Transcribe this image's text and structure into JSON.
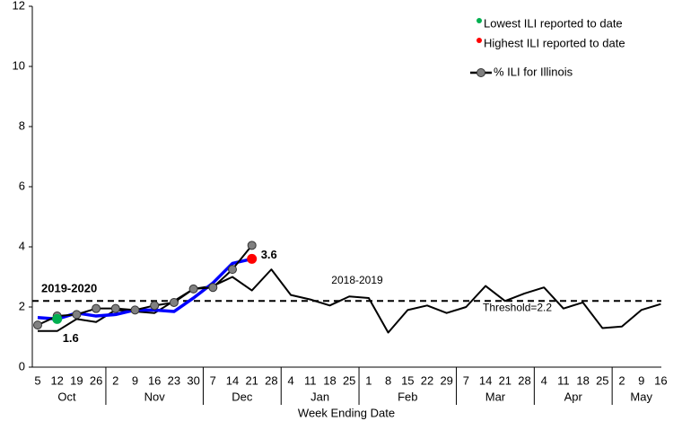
{
  "chart_data": {
    "type": "line",
    "x_label": "Week Ending Date",
    "months": [
      {
        "name": "Oct",
        "days": [
          "5",
          "12",
          "19",
          "26"
        ]
      },
      {
        "name": "Nov",
        "days": [
          "2",
          "9",
          "16",
          "23",
          "30"
        ]
      },
      {
        "name": "Dec",
        "days": [
          "7",
          "14",
          "21",
          "28"
        ]
      },
      {
        "name": "Jan",
        "days": [
          "4",
          "11",
          "18",
          "25"
        ]
      },
      {
        "name": "Feb",
        "days": [
          "1",
          "8",
          "15",
          "22",
          "29"
        ]
      },
      {
        "name": "Mar",
        "days": [
          "7",
          "14",
          "21",
          "28"
        ]
      },
      {
        "name": "Apr",
        "days": [
          "4",
          "11",
          "18",
          "25"
        ]
      },
      {
        "name": "May",
        "days": [
          "2",
          "9",
          "16"
        ]
      }
    ],
    "ylim": [
      0,
      12
    ],
    "yticks": [
      0,
      2,
      4,
      6,
      8,
      10,
      12
    ],
    "grid": false,
    "threshold": {
      "value": 2.2,
      "label": "Threshold=2.2"
    },
    "annotations": [
      "2019-2020"
    ],
    "series": [
      {
        "name": "2018-2019",
        "color": "#000000",
        "marker": false,
        "in_legend": false,
        "values": [
          1.2,
          1.2,
          1.6,
          1.5,
          1.9,
          1.85,
          1.8,
          2.2,
          2.6,
          2.7,
          3.0,
          2.55,
          3.25,
          2.4,
          2.25,
          2.05,
          2.35,
          2.3,
          1.15,
          1.9,
          2.05,
          1.8,
          2.0,
          2.7,
          2.2,
          2.45,
          2.65,
          1.95,
          2.15,
          1.3,
          1.35,
          1.9,
          2.1
        ]
      },
      {
        "color": "#0000ff",
        "marker": false,
        "in_legend": false,
        "values": [
          1.65,
          1.6,
          1.8,
          1.7,
          1.75,
          1.9,
          1.9,
          1.85,
          2.3,
          2.8,
          3.45,
          3.6,
          null,
          null,
          null,
          null,
          null,
          null,
          null,
          null,
          null,
          null,
          null,
          null,
          null,
          null,
          null,
          null,
          null,
          null,
          null,
          null,
          null
        ]
      },
      {
        "name": "% ILI for Illinois",
        "color": "#000000",
        "marker_color": "#808080",
        "marker": true,
        "in_legend": true,
        "values": [
          1.4,
          1.7,
          1.75,
          1.95,
          1.95,
          1.9,
          2.05,
          2.15,
          2.6,
          2.65,
          3.25,
          4.05,
          null,
          null,
          null,
          null,
          null,
          null,
          null,
          null,
          null,
          null,
          null,
          null,
          null,
          null,
          null,
          null,
          null,
          null,
          null,
          null,
          null
        ]
      },
      {
        "name": "Lowest ILI reported to date",
        "color": "#00b050",
        "dot": true,
        "in_legend": true,
        "values": [
          null,
          1.6,
          null,
          null,
          null,
          null,
          null,
          null,
          null,
          null,
          null,
          null,
          null,
          null,
          null,
          null,
          null,
          null,
          null,
          null,
          null,
          null,
          null,
          null,
          null,
          null,
          null,
          null,
          null,
          null,
          null,
          null,
          null
        ],
        "value_labels": [
          null,
          "1.6",
          null,
          null,
          null,
          null,
          null,
          null,
          null,
          null,
          null,
          null,
          null,
          null,
          null,
          null,
          null,
          null,
          null,
          null,
          null,
          null,
          null,
          null,
          null,
          null,
          null,
          null,
          null,
          null,
          null,
          null,
          null
        ]
      },
      {
        "name": "Highest ILI reported to date",
        "color": "#ff0000",
        "dot": true,
        "in_legend": true,
        "values": [
          null,
          null,
          null,
          null,
          null,
          null,
          null,
          null,
          null,
          null,
          null,
          3.6,
          null,
          null,
          null,
          null,
          null,
          null,
          null,
          null,
          null,
          null,
          null,
          null,
          null,
          null,
          null,
          null,
          null,
          null,
          null,
          null,
          null
        ],
        "value_labels": [
          null,
          null,
          null,
          null,
          null,
          null,
          null,
          null,
          null,
          null,
          null,
          "3.6",
          null,
          null,
          null,
          null,
          null,
          null,
          null,
          null,
          null,
          null,
          null,
          null,
          null,
          null,
          null,
          null,
          null,
          null,
          null,
          null,
          null
        ]
      }
    ]
  }
}
